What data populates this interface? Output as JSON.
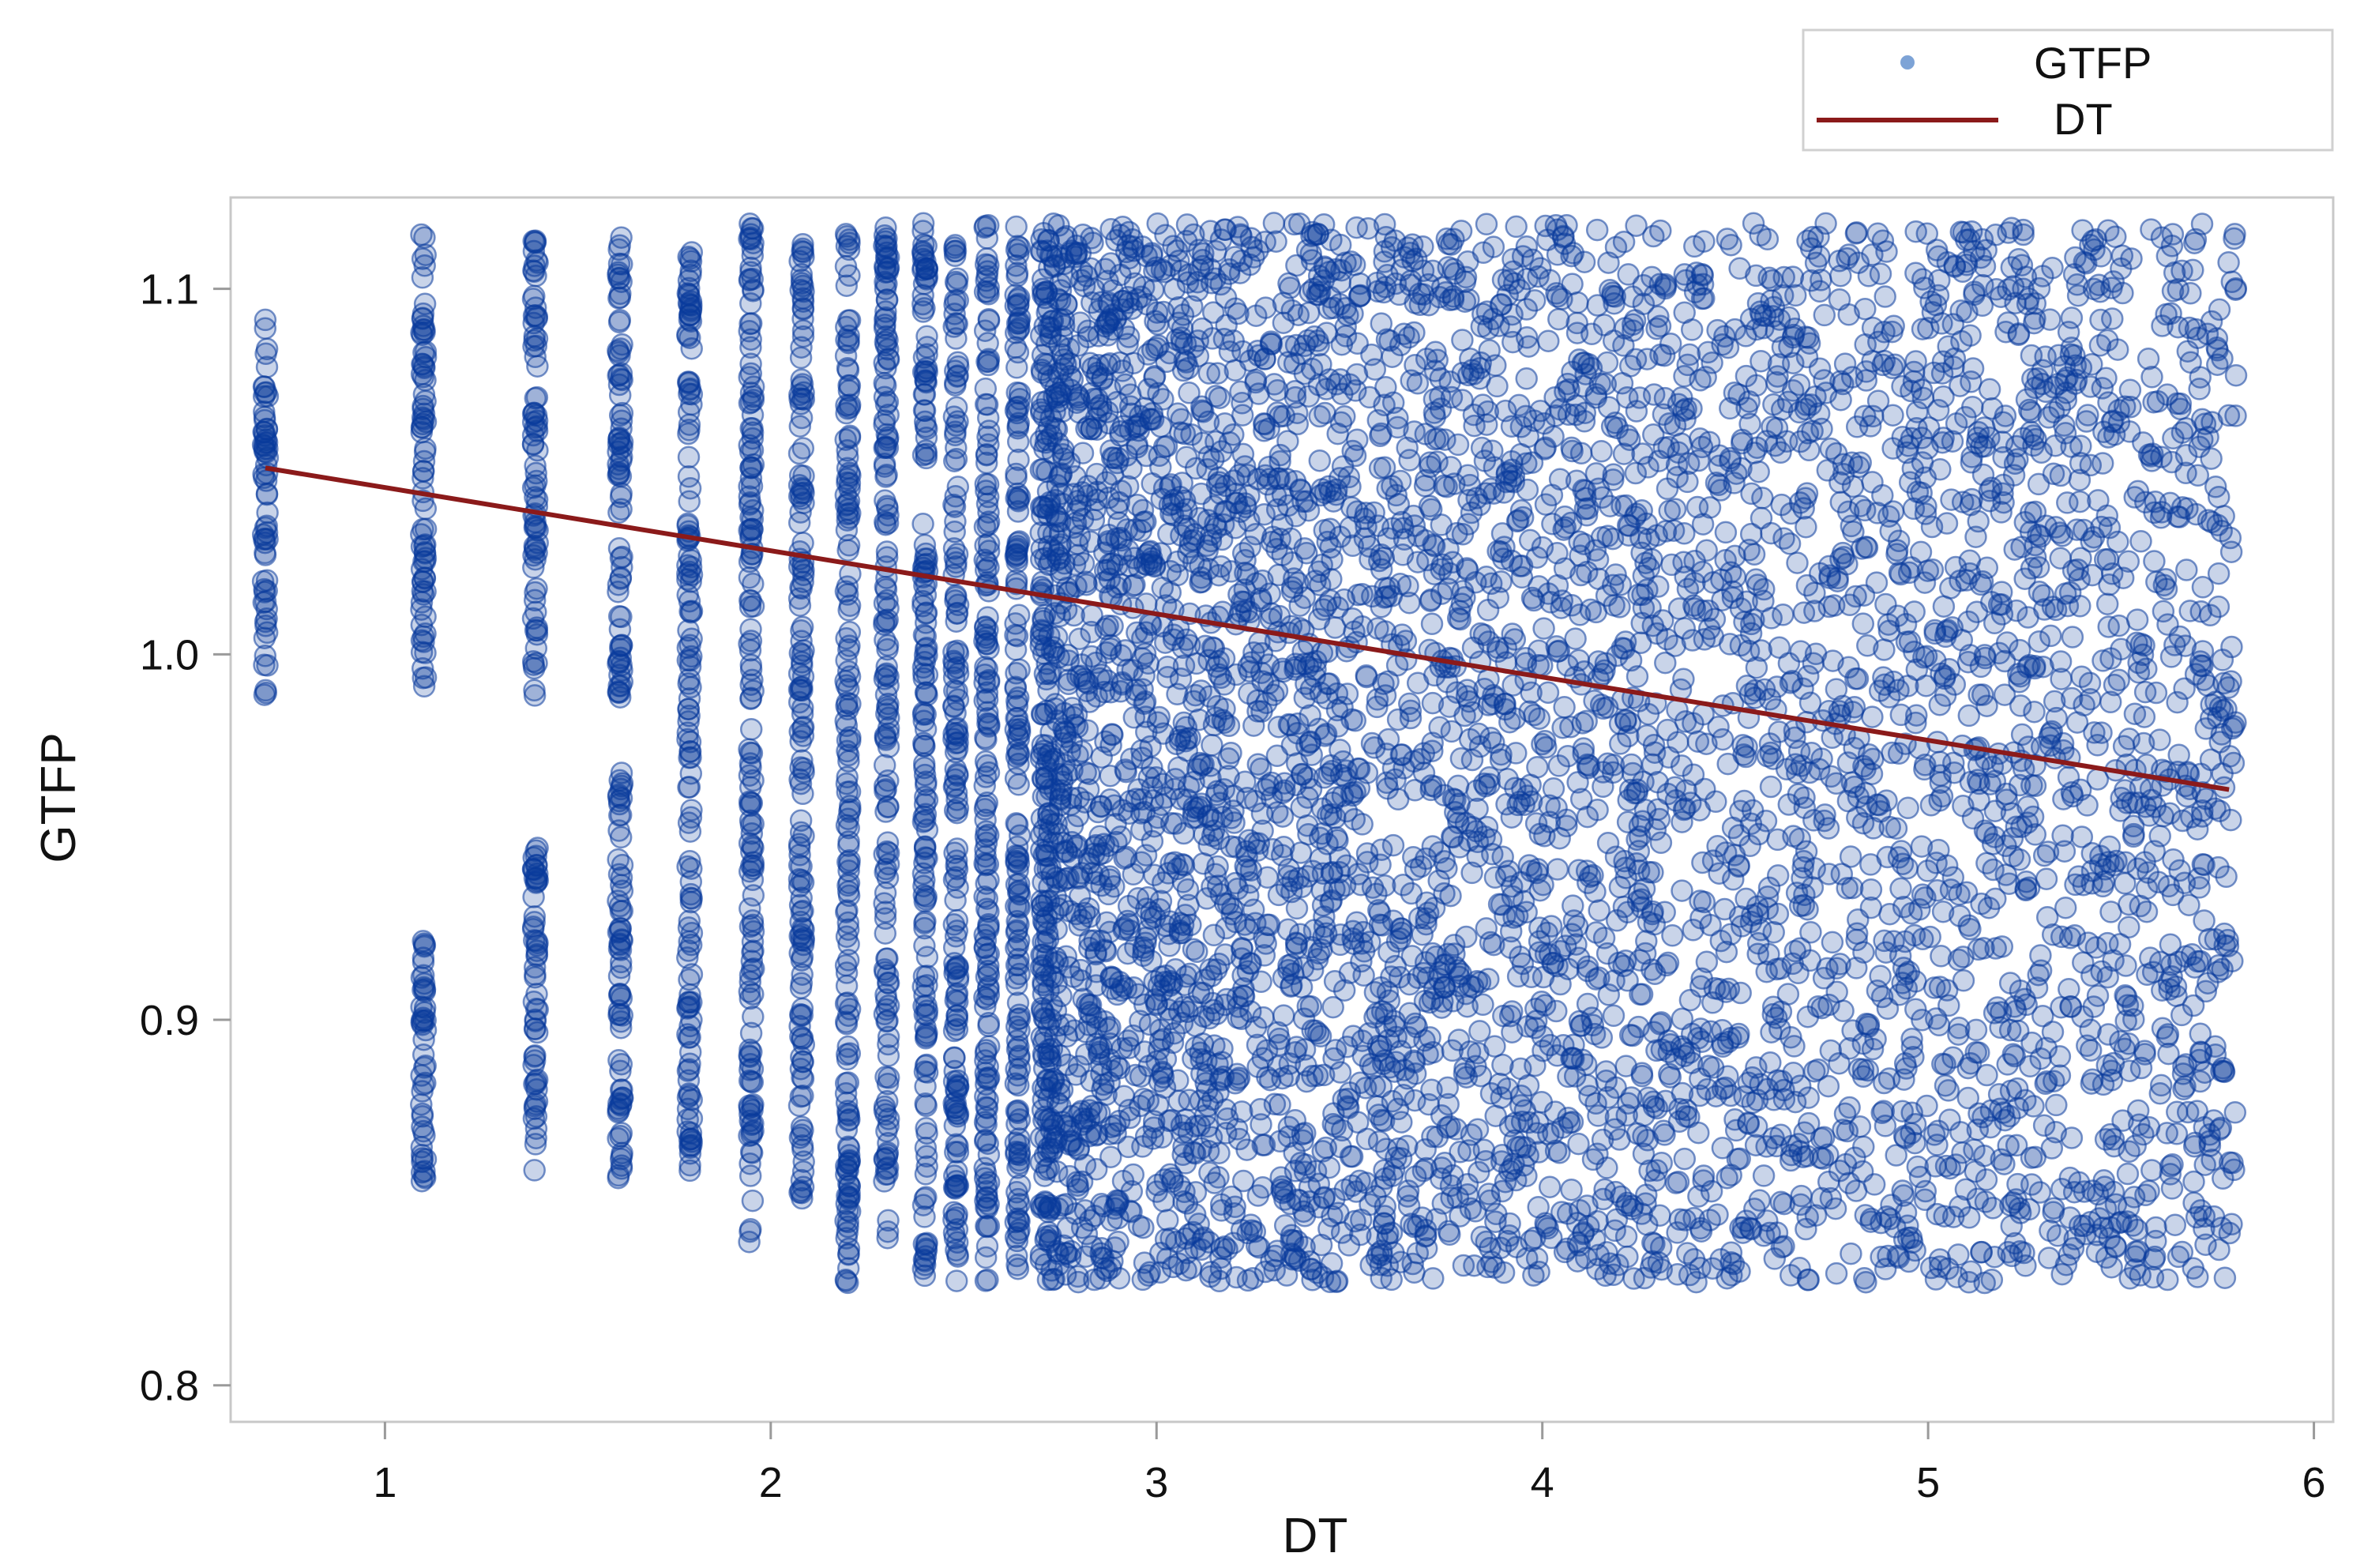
{
  "chart_data": {
    "type": "scatter",
    "title": "",
    "xlabel": "DT",
    "ylabel": "GTFP",
    "xlim": [
      0.6,
      6.05
    ],
    "ylim": [
      0.79,
      1.125
    ],
    "xticks": [
      1,
      2,
      3,
      4,
      5,
      6
    ],
    "yticks": [
      0.8,
      0.9,
      1.0,
      1.1
    ],
    "xtick_labels": [
      "1",
      "2",
      "3",
      "4",
      "5",
      "6"
    ],
    "ytick_labels": [
      "0.8",
      "0.9",
      "1.0",
      "1.1"
    ],
    "grid": false,
    "legend": {
      "position": "top-right",
      "entries": [
        "GTFP",
        "DT"
      ]
    },
    "colors": {
      "points": "#0a3a9c",
      "line": "#8b1a1a",
      "legend_marker": "#7da3d6",
      "axis": "#bbbbbb"
    },
    "series": [
      {
        "name": "GTFP",
        "kind": "scatter",
        "description_note": "dense point cloud; discrete vertical columns at low DT values",
        "columns": [
          {
            "x": 0.69,
            "y_range": [
              0.988,
              1.092
            ]
          },
          {
            "x": 1.1,
            "y_range": [
              0.988,
              1.118
            ]
          },
          {
            "x": 1.1,
            "y_range": [
              0.855,
              0.922
            ]
          },
          {
            "x": 1.39,
            "y_range": [
              0.988,
              1.118
            ]
          },
          {
            "x": 1.39,
            "y_range": [
              0.858,
              0.948
            ]
          },
          {
            "x": 1.61,
            "y_range": [
              0.988,
              1.118
            ]
          },
          {
            "x": 1.61,
            "y_range": [
              0.855,
              0.968
            ]
          },
          {
            "x": 1.79,
            "y_range": [
              0.858,
              1.118
            ]
          },
          {
            "x": 1.95,
            "y_range": [
              0.838,
              1.118
            ]
          },
          {
            "x": 2.08,
            "y_range": [
              0.848,
              1.118
            ]
          },
          {
            "x": 2.2,
            "y_range": [
              0.828,
              1.118
            ]
          },
          {
            "x": 2.3,
            "y_range": [
              0.838,
              1.118
            ]
          },
          {
            "x": 2.4,
            "y_range": [
              0.828,
              1.118
            ]
          },
          {
            "x": 2.48,
            "y_range": [
              0.828,
              1.118
            ]
          },
          {
            "x": 2.56,
            "y_range": [
              0.828,
              1.118
            ]
          },
          {
            "x": 2.64,
            "y_range": [
              0.828,
              1.118
            ]
          }
        ],
        "cloud": {
          "x_range": [
            2.7,
            5.8
          ],
          "y_range": [
            0.828,
            1.118
          ]
        }
      },
      {
        "name": "DT",
        "kind": "line",
        "x": [
          0.69,
          5.78
        ],
        "y": [
          1.051,
          0.963
        ]
      }
    ]
  }
}
